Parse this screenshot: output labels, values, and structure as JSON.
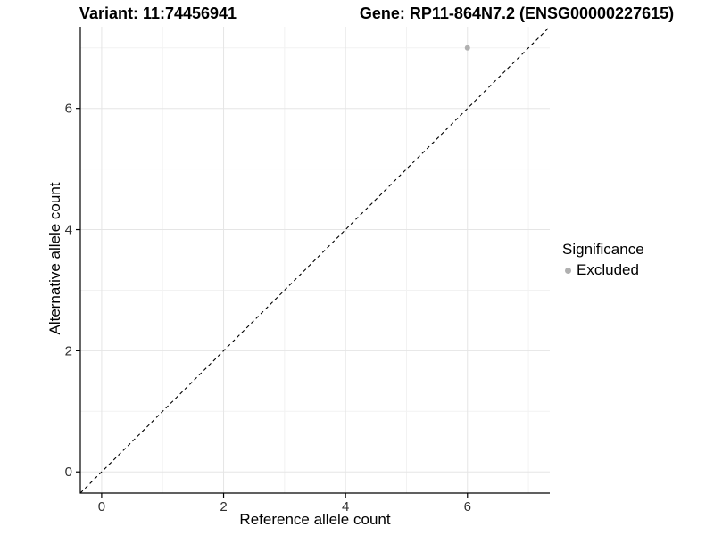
{
  "header": {
    "variant_title": "Variant: 11:74456941",
    "gene_title": "Gene: RP11-864N7.2 (ENSG00000227615)"
  },
  "legend": {
    "title": "Significance",
    "items": [
      {
        "label": "Excluded",
        "color": "#b0b0b0",
        "marker": "circle"
      }
    ]
  },
  "chart_data": {
    "type": "scatter",
    "titles": [
      "Variant: 11:74456941",
      "Gene: RP11-864N7.2 (ENSG00000227615)"
    ],
    "xlabel": "Reference allele count",
    "ylabel": "Alternative allele count",
    "xlim": [
      -0.35,
      7.35
    ],
    "ylim": [
      -0.35,
      7.35
    ],
    "xticks": [
      0,
      2,
      4,
      6
    ],
    "yticks": [
      0,
      2,
      4,
      6
    ],
    "minor_xticks": [
      1,
      3,
      5,
      7
    ],
    "minor_yticks": [
      1,
      3,
      5,
      7
    ],
    "grid": "major+minor",
    "legend_position": "right",
    "series": [
      {
        "name": "Excluded",
        "color": "#b0b0b0",
        "points": [
          {
            "x": 6,
            "y": 7
          }
        ]
      }
    ],
    "reference_line": {
      "type": "identity",
      "style": "dashed",
      "color": "#000000"
    },
    "colors": {
      "major_grid": "#e5e5e5",
      "minor_grid": "#f2f2f2",
      "axis_line": "#000000",
      "tick_label": "#303030"
    }
  }
}
